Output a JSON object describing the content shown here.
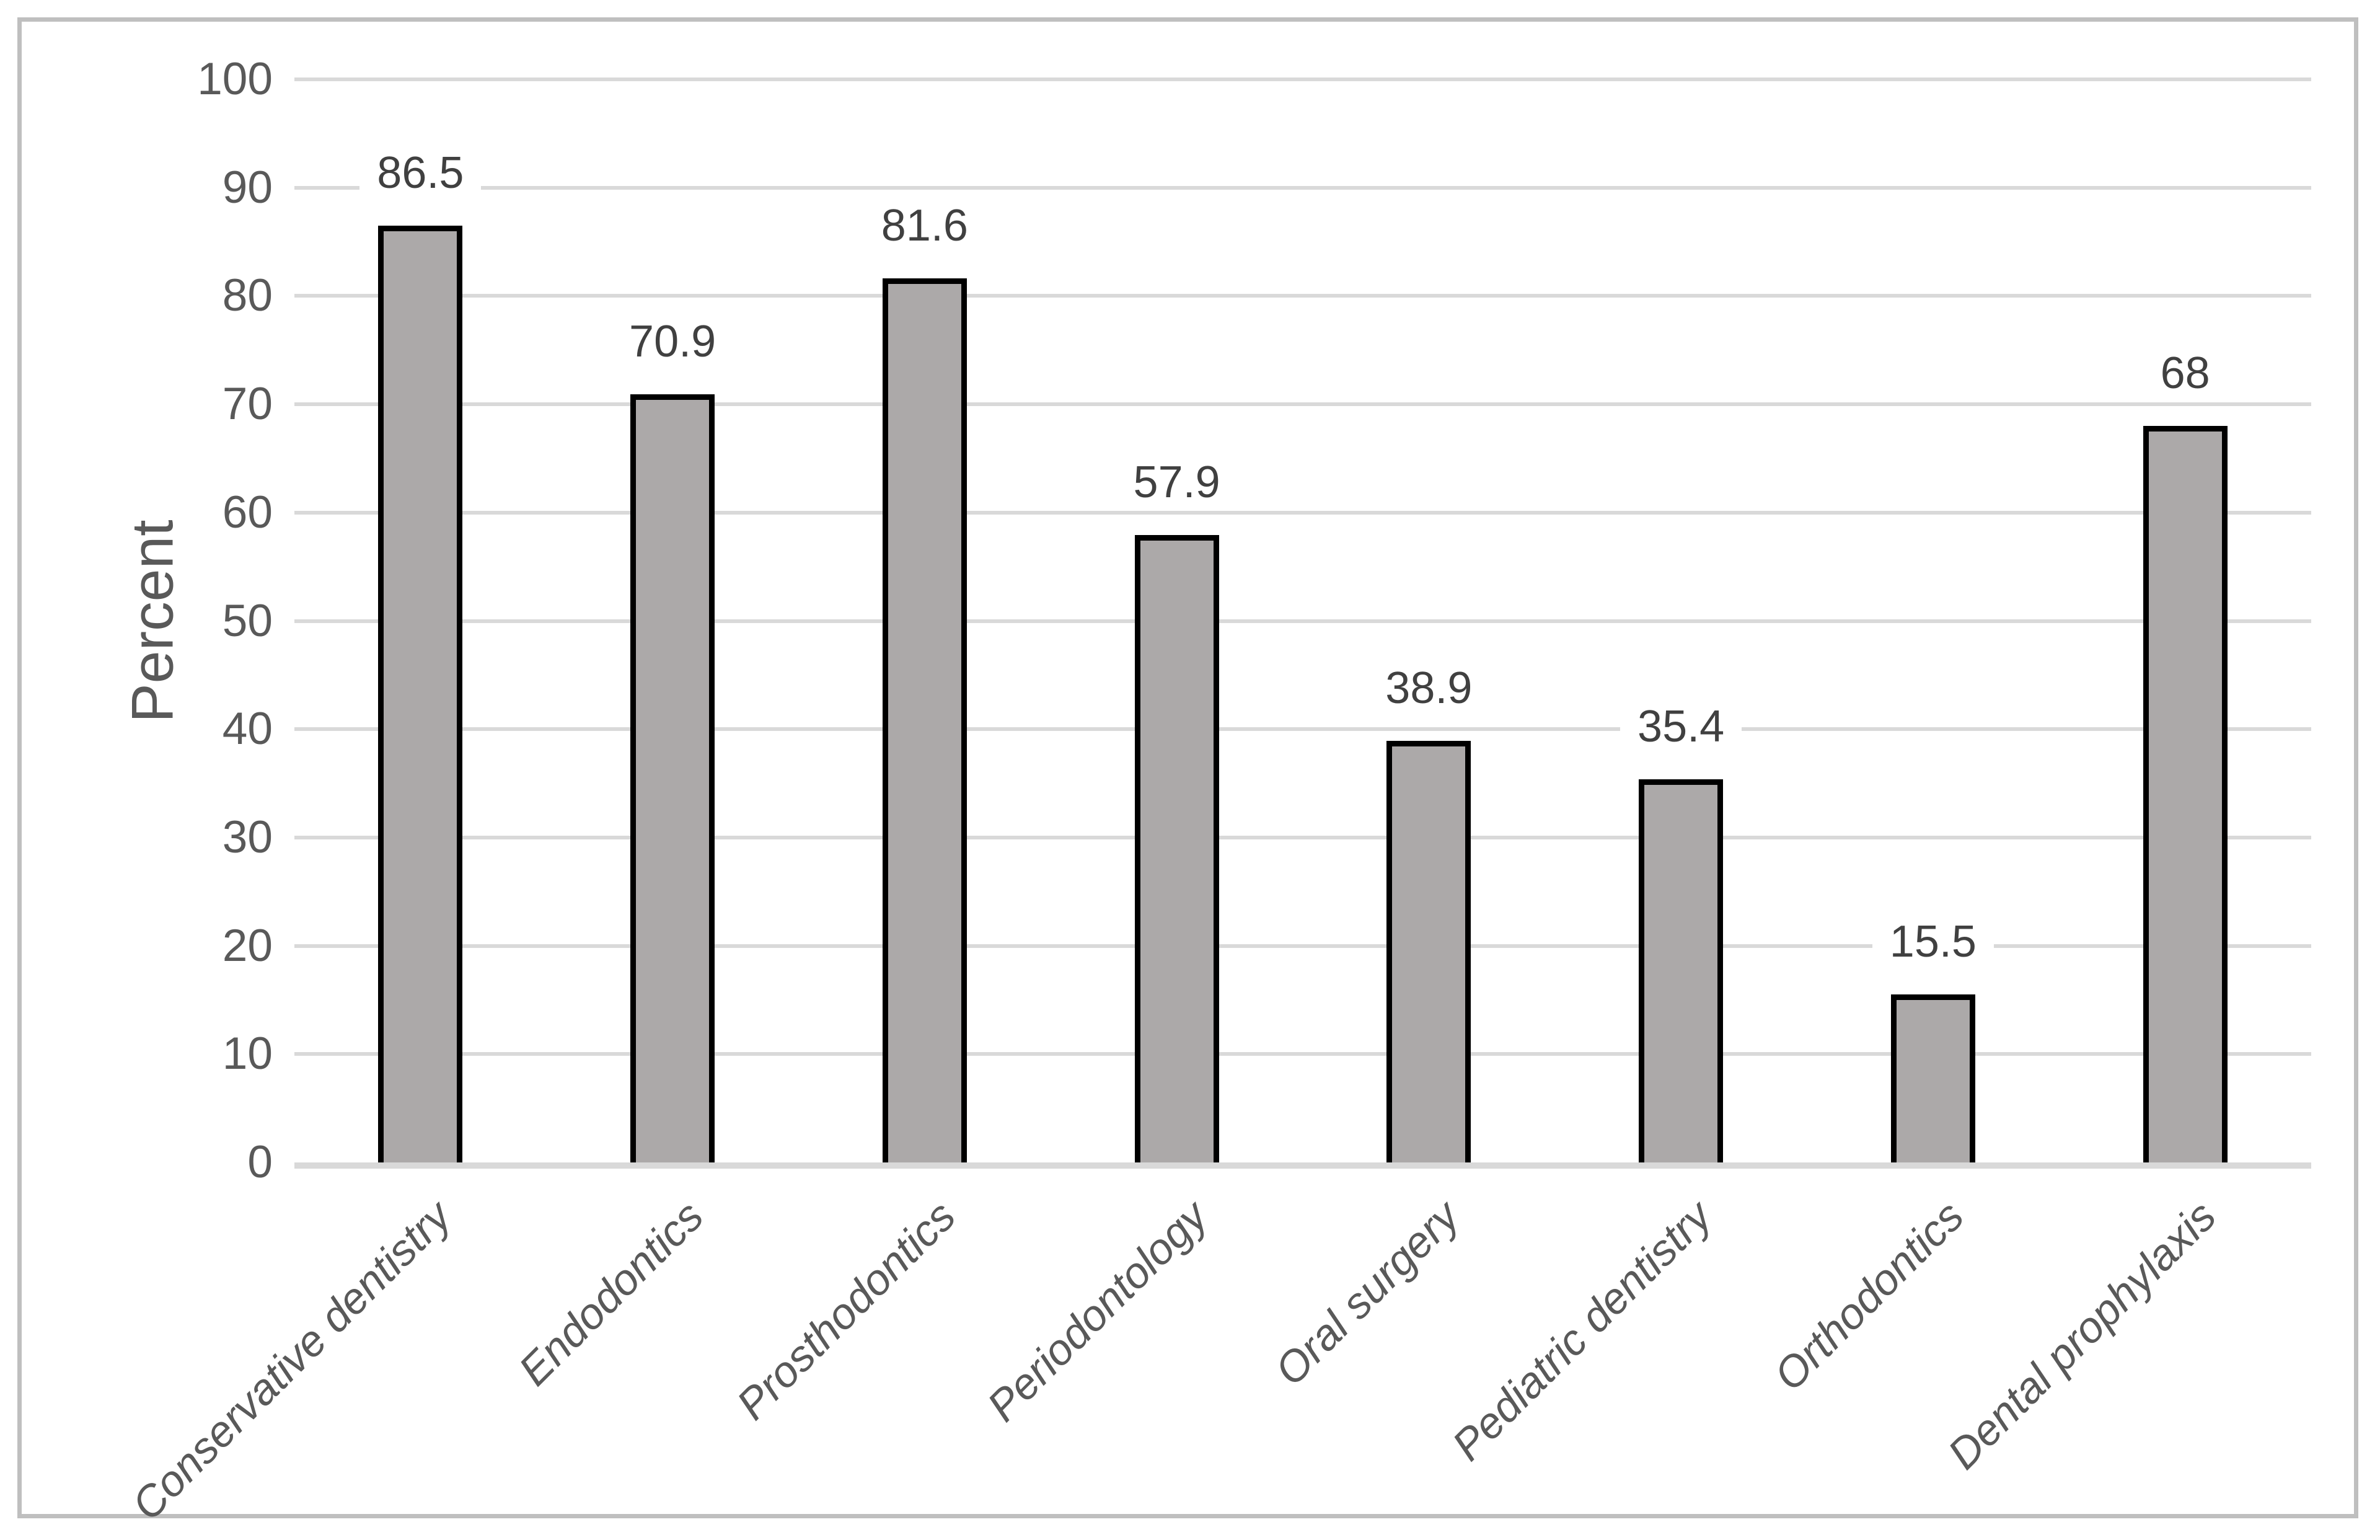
{
  "chart_data": {
    "type": "bar",
    "title": "",
    "ylabel": "Percent",
    "xlabel": "",
    "categories": [
      "Conservative dentistry",
      "Endodontics",
      "Prosthodontics",
      "Periodontology",
      "Oral surgery",
      "Pediatric dentistry",
      "Orthodontics",
      "Dental prophylaxis"
    ],
    "values": [
      86.5,
      70.9,
      81.6,
      57.9,
      38.9,
      35.4,
      15.5,
      68
    ],
    "value_labels": [
      "86.5",
      "70.9",
      "81.6",
      "57.9",
      "38.9",
      "35.4",
      "15.5",
      "68"
    ],
    "ylim": [
      0,
      100
    ],
    "ytick_step": 10,
    "ytick_labels": [
      "0",
      "10",
      "20",
      "30",
      "40",
      "50",
      "60",
      "70",
      "80",
      "90",
      "100"
    ],
    "grid": "horizontal",
    "legend_position": "none",
    "bar_label_position": "above-bar",
    "category_label_rotation_deg": 45,
    "colors": {
      "bar_fill": "#aca9a9",
      "bar_border": "#000000",
      "gridline": "#d9d9d9",
      "axis_line": "#d9d9d9",
      "tick_text": "#595959",
      "category_text": "#595959",
      "data_label_text": "#404040",
      "axis_title_text": "#595959",
      "frame_border": "#bfbfbf",
      "background": "#ffffff"
    }
  }
}
